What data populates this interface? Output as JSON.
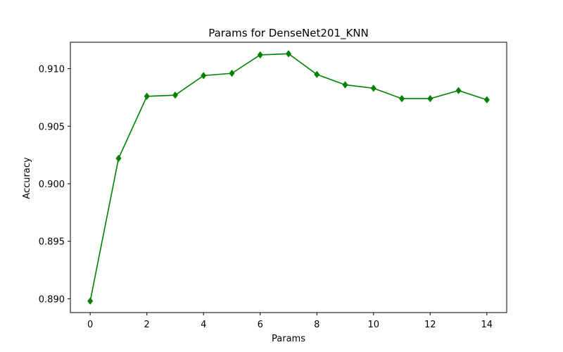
{
  "chart_data": {
    "type": "line",
    "title": "Params for DenseNet201_KNN",
    "xlabel": "Params",
    "ylabel": "Accuracy",
    "xlim": [
      -0.7,
      14.7
    ],
    "ylim": [
      0.8888,
      0.9123
    ],
    "xticks": [
      0,
      2,
      4,
      6,
      8,
      10,
      12,
      14
    ],
    "xtick_labels": [
      "0",
      "2",
      "4",
      "6",
      "8",
      "10",
      "12",
      "14"
    ],
    "yticks": [
      0.89,
      0.895,
      0.9,
      0.905,
      0.91
    ],
    "ytick_labels": [
      "0.890",
      "0.895",
      "0.900",
      "0.905",
      "0.910"
    ],
    "grid": false,
    "series": [
      {
        "color": "#008000",
        "marker": "diamond",
        "x": [
          0,
          1,
          2,
          3,
          4,
          5,
          6,
          7,
          8,
          9,
          10,
          11,
          12,
          13,
          14
        ],
        "y": [
          0.8898,
          0.9022,
          0.9076,
          0.9077,
          0.9094,
          0.9096,
          0.9112,
          0.9113,
          0.9095,
          0.9086,
          0.9083,
          0.9074,
          0.9074,
          0.9081,
          0.9073
        ]
      }
    ]
  }
}
